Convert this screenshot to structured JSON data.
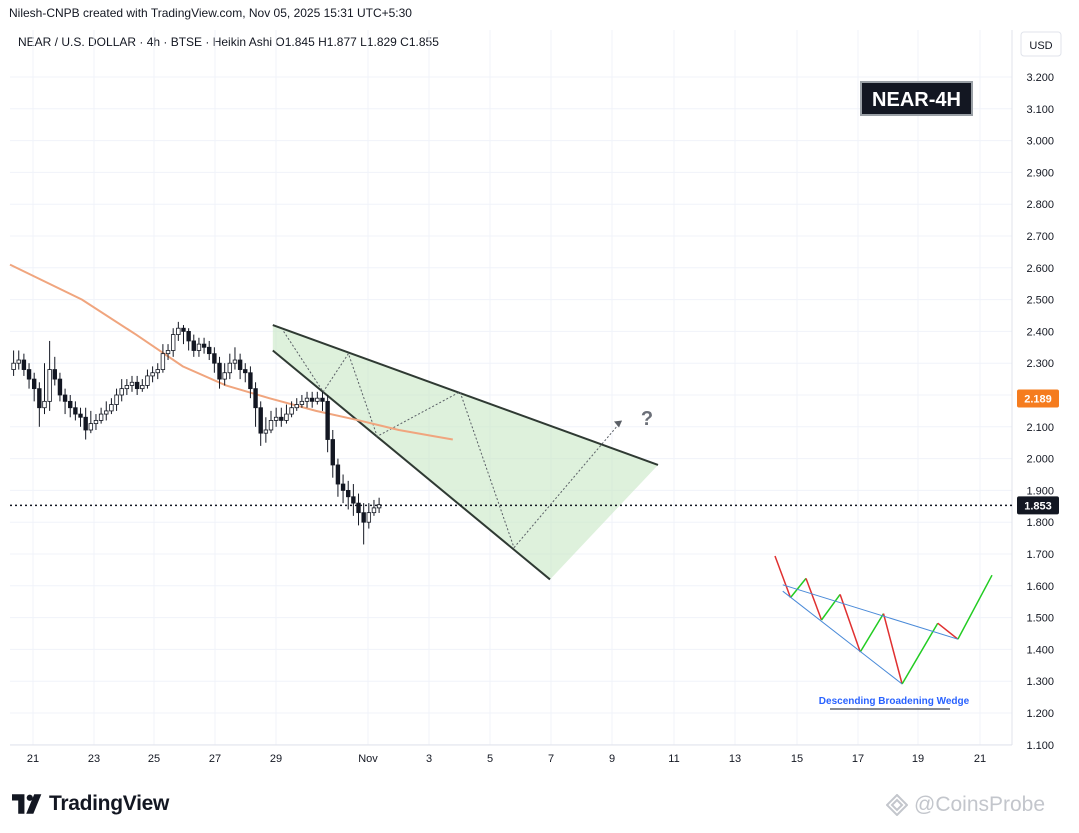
{
  "header": {
    "caption": "Nilesh-CNPB created with TradingView.com, Nov 05, 2025 15:31 UTC+5:30",
    "symbol_line": "NEAR / U.S. DOLLAR · 4h · BTSE · Heikin Ashi   O1.845   H1.877   L1.829   C1.855"
  },
  "footer": {
    "brand": "TradingView",
    "watermark": "@CoinsProbe"
  },
  "colors": {
    "up": "#131722",
    "down": "#131722",
    "ma": "#f0a57e",
    "ma_badge": "#f57c1f",
    "wedge_fill": "#c8e8c5",
    "wedge_edge": "#2f3a33",
    "grid": "#f0f3fa",
    "inset_up": "#22cc22",
    "inset_down": "#e03030",
    "inset_line": "#4a8ad8",
    "inset_label": "#2962ff"
  },
  "chart_data": {
    "type": "candlestick",
    "symbol": "NEAR / U.S. DOLLAR",
    "interval": "4h",
    "currency": "USD",
    "title": "NEAR-4H",
    "ylim": [
      1.1,
      3.2
    ],
    "y_ticks": [
      "3.200",
      "3.100",
      "3.000",
      "2.900",
      "2.800",
      "2.700",
      "2.600",
      "2.500",
      "2.400",
      "2.300",
      "2.200",
      "2.100",
      "2.000",
      "1.900",
      "1.800",
      "1.700",
      "1.600",
      "1.500",
      "1.400",
      "1.300",
      "1.200",
      "1.100"
    ],
    "x_ticks": [
      "21",
      "23",
      "25",
      "27",
      "29",
      "Nov",
      "3",
      "5",
      "7",
      "9",
      "11",
      "13",
      "15",
      "17",
      "19",
      "21"
    ],
    "last_price": "1.853",
    "ma_value": "2.189",
    "question_mark": "?",
    "candles": [
      [
        2.28,
        2.3,
        2.34,
        2.26
      ],
      [
        2.3,
        2.31,
        2.34,
        2.28
      ],
      [
        2.31,
        2.28,
        2.33,
        2.26
      ],
      [
        2.28,
        2.25,
        2.3,
        2.22
      ],
      [
        2.25,
        2.22,
        2.27,
        2.18
      ],
      [
        2.22,
        2.16,
        2.24,
        2.1
      ],
      [
        2.16,
        2.18,
        2.3,
        2.14
      ],
      [
        2.18,
        2.28,
        2.37,
        2.15
      ],
      [
        2.28,
        2.25,
        2.32,
        2.23
      ],
      [
        2.25,
        2.2,
        2.27,
        2.18
      ],
      [
        2.2,
        2.18,
        2.22,
        2.14
      ],
      [
        2.18,
        2.16,
        2.2,
        2.13
      ],
      [
        2.16,
        2.14,
        2.18,
        2.12
      ],
      [
        2.14,
        2.13,
        2.16,
        2.1
      ],
      [
        2.13,
        2.09,
        2.16,
        2.06
      ],
      [
        2.09,
        2.11,
        2.15,
        2.08
      ],
      [
        2.11,
        2.12,
        2.14,
        2.09
      ],
      [
        2.12,
        2.14,
        2.16,
        2.11
      ],
      [
        2.14,
        2.15,
        2.18,
        2.12
      ],
      [
        2.15,
        2.17,
        2.19,
        2.14
      ],
      [
        2.17,
        2.2,
        2.22,
        2.15
      ],
      [
        2.2,
        2.22,
        2.25,
        2.18
      ],
      [
        2.22,
        2.23,
        2.25,
        2.2
      ],
      [
        2.23,
        2.24,
        2.26,
        2.21
      ],
      [
        2.24,
        2.22,
        2.26,
        2.2
      ],
      [
        2.22,
        2.23,
        2.25,
        2.21
      ],
      [
        2.23,
        2.26,
        2.28,
        2.22
      ],
      [
        2.26,
        2.27,
        2.29,
        2.24
      ],
      [
        2.27,
        2.28,
        2.3,
        2.25
      ],
      [
        2.28,
        2.33,
        2.36,
        2.27
      ],
      [
        2.33,
        2.34,
        2.36,
        2.31
      ],
      [
        2.34,
        2.39,
        2.41,
        2.32
      ],
      [
        2.39,
        2.41,
        2.43,
        2.37
      ],
      [
        2.41,
        2.4,
        2.42,
        2.36
      ],
      [
        2.4,
        2.37,
        2.41,
        2.34
      ],
      [
        2.37,
        2.34,
        2.39,
        2.32
      ],
      [
        2.34,
        2.36,
        2.38,
        2.32
      ],
      [
        2.36,
        2.35,
        2.38,
        2.33
      ],
      [
        2.35,
        2.33,
        2.37,
        2.31
      ],
      [
        2.33,
        2.3,
        2.35,
        2.27
      ],
      [
        2.3,
        2.25,
        2.32,
        2.22
      ],
      [
        2.25,
        2.27,
        2.3,
        2.23
      ],
      [
        2.27,
        2.3,
        2.33,
        2.25
      ],
      [
        2.3,
        2.31,
        2.35,
        2.28
      ],
      [
        2.31,
        2.28,
        2.33,
        2.25
      ],
      [
        2.28,
        2.27,
        2.3,
        2.24
      ],
      [
        2.27,
        2.22,
        2.29,
        2.19
      ],
      [
        2.22,
        2.16,
        2.24,
        2.1
      ],
      [
        2.16,
        2.08,
        2.18,
        2.04
      ],
      [
        2.08,
        2.09,
        2.13,
        2.05
      ],
      [
        2.09,
        2.12,
        2.15,
        2.08
      ],
      [
        2.12,
        2.13,
        2.16,
        2.1
      ],
      [
        2.13,
        2.12,
        2.16,
        2.1
      ],
      [
        2.12,
        2.14,
        2.17,
        2.11
      ],
      [
        2.14,
        2.16,
        2.18,
        2.13
      ],
      [
        2.16,
        2.17,
        2.19,
        2.15
      ],
      [
        2.17,
        2.18,
        2.2,
        2.16
      ],
      [
        2.18,
        2.19,
        2.21,
        2.16
      ],
      [
        2.19,
        2.18,
        2.21,
        2.16
      ],
      [
        2.18,
        2.19,
        2.21,
        2.17
      ],
      [
        2.19,
        2.18,
        2.21,
        2.15
      ],
      [
        2.18,
        2.06,
        2.2,
        2.02
      ],
      [
        2.06,
        1.98,
        2.09,
        1.94
      ],
      [
        1.98,
        1.92,
        2.0,
        1.88
      ],
      [
        1.92,
        1.9,
        1.95,
        1.86
      ],
      [
        1.9,
        1.88,
        1.93,
        1.84
      ],
      [
        1.88,
        1.86,
        1.92,
        1.82
      ],
      [
        1.86,
        1.83,
        1.89,
        1.79
      ],
      [
        1.83,
        1.8,
        1.86,
        1.73
      ],
      [
        1.8,
        1.83,
        1.86,
        1.78
      ],
      [
        1.83,
        1.845,
        1.87,
        1.82
      ],
      [
        1.845,
        1.855,
        1.877,
        1.829
      ]
    ],
    "moving_average": [
      [
        0,
        2.61
      ],
      [
        20,
        2.5
      ],
      [
        35,
        2.39
      ],
      [
        48,
        2.29
      ],
      [
        60,
        2.23
      ],
      [
        72,
        2.19
      ],
      [
        85,
        2.15
      ],
      [
        97,
        2.12
      ],
      [
        108,
        2.09
      ],
      [
        118,
        2.07
      ],
      [
        123,
        2.06
      ]
    ],
    "wedge": {
      "upper": [
        [
          53,
          2.42
        ],
        [
          160,
          1.98
        ]
      ],
      "lower": [
        [
          53,
          2.34
        ],
        [
          130,
          1.62
        ]
      ],
      "projection": [
        [
          120,
          1.72
        ],
        [
          150,
          2.12
        ]
      ],
      "inner_zigzag": [
        [
          56,
          2.4
        ],
        [
          67,
          2.21
        ],
        [
          74,
          2.33
        ],
        [
          82,
          2.07
        ],
        [
          105,
          2.21
        ],
        [
          120,
          1.72
        ]
      ]
    },
    "inset": {
      "label": "Descending Broadening Wedge",
      "points": [
        [
          0,
          1.69
        ],
        [
          10,
          1.56
        ],
        [
          20,
          1.62
        ],
        [
          30,
          1.49
        ],
        [
          42,
          1.57
        ],
        [
          55,
          1.39
        ],
        [
          70,
          1.51
        ],
        [
          82,
          1.29
        ],
        [
          105,
          1.48
        ],
        [
          118,
          1.43
        ],
        [
          140,
          1.63
        ]
      ]
    }
  }
}
